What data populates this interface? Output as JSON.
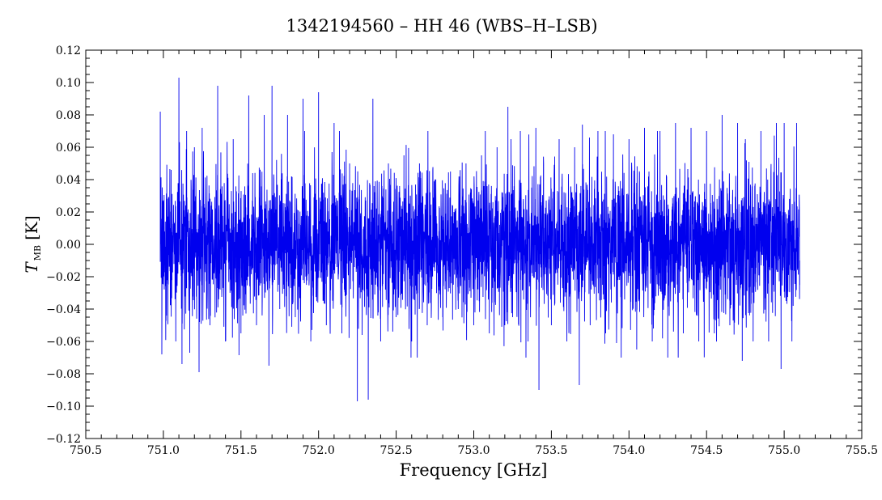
{
  "chart_data": {
    "type": "line",
    "title": "1342194560 – HH 46 (WBS–H–LSB)",
    "xlabel": "Frequency [GHz]",
    "ylabel": {
      "symbol": "T",
      "subscript": "MB",
      "unit": "[K]"
    },
    "xlim": [
      750.5,
      755.5
    ],
    "ylim": [
      -0.12,
      0.12
    ],
    "x_ticks": [
      750.5,
      751.0,
      751.5,
      752.0,
      752.5,
      753.0,
      753.5,
      754.0,
      754.5,
      755.0,
      755.5
    ],
    "x_tick_labels": [
      "750.5",
      "751.0",
      "751.5",
      "752.0",
      "752.5",
      "753.0",
      "753.5",
      "754.0",
      "754.5",
      "755.0",
      "755.5"
    ],
    "y_ticks": [
      -0.12,
      -0.1,
      -0.08,
      -0.06,
      -0.04,
      -0.02,
      0.0,
      0.02,
      0.04,
      0.06,
      0.08,
      0.1,
      0.12
    ],
    "y_tick_labels": [
      "−0.12",
      "−0.10",
      "−0.08",
      "−0.06",
      "−0.04",
      "−0.02",
      "0.00",
      "0.02",
      "0.04",
      "0.06",
      "0.08",
      "0.10",
      "0.12"
    ],
    "grid": false,
    "series": [
      {
        "color": "#0000ee",
        "x_range": [
          750.98,
          755.1
        ],
        "note_values": "noise spectrum, approx. zero mean, extremes shown below",
        "points": [
          [
            750.98,
            0.082
          ],
          [
            750.99,
            -0.068
          ],
          [
            751.0,
            0.02
          ],
          [
            751.02,
            -0.044
          ],
          [
            751.05,
            0.046
          ],
          [
            751.08,
            -0.06
          ],
          [
            751.1,
            0.103
          ],
          [
            751.12,
            -0.074
          ],
          [
            751.15,
            0.07
          ],
          [
            751.17,
            -0.067
          ],
          [
            751.2,
            0.06
          ],
          [
            751.23,
            -0.079
          ],
          [
            751.25,
            0.072
          ],
          [
            751.3,
            -0.05
          ],
          [
            751.35,
            0.098
          ],
          [
            751.4,
            -0.06
          ],
          [
            751.45,
            0.065
          ],
          [
            751.5,
            -0.055
          ],
          [
            751.55,
            0.092
          ],
          [
            751.6,
            -0.05
          ],
          [
            751.65,
            0.08
          ],
          [
            751.68,
            -0.075
          ],
          [
            751.7,
            0.098
          ],
          [
            751.75,
            -0.04
          ],
          [
            751.8,
            0.08
          ],
          [
            751.85,
            -0.045
          ],
          [
            751.9,
            0.09
          ],
          [
            751.95,
            -0.06
          ],
          [
            752.0,
            0.094
          ],
          [
            752.05,
            -0.05
          ],
          [
            752.1,
            0.075
          ],
          [
            752.15,
            -0.055
          ],
          [
            752.2,
            0.05
          ],
          [
            752.25,
            -0.097
          ],
          [
            752.3,
            0.025
          ],
          [
            752.32,
            -0.096
          ],
          [
            752.35,
            0.09
          ],
          [
            752.4,
            -0.06
          ],
          [
            752.45,
            0.05
          ],
          [
            752.5,
            -0.045
          ],
          [
            752.55,
            0.055
          ],
          [
            752.6,
            -0.06
          ],
          [
            752.65,
            0.05
          ],
          [
            752.7,
            -0.05
          ],
          [
            752.75,
            0.04
          ],
          [
            752.8,
            -0.045
          ],
          [
            752.85,
            0.045
          ],
          [
            752.9,
            -0.04
          ],
          [
            752.95,
            0.05
          ],
          [
            753.0,
            -0.05
          ],
          [
            753.05,
            0.055
          ],
          [
            753.1,
            -0.055
          ],
          [
            753.15,
            0.06
          ],
          [
            753.2,
            -0.05
          ],
          [
            753.22,
            0.085
          ],
          [
            753.25,
            -0.045
          ],
          [
            753.3,
            0.07
          ],
          [
            753.35,
            -0.06
          ],
          [
            753.4,
            0.072
          ],
          [
            753.42,
            -0.09
          ],
          [
            753.45,
            0.05
          ],
          [
            753.5,
            -0.05
          ],
          [
            753.55,
            0.065
          ],
          [
            753.6,
            -0.06
          ],
          [
            753.65,
            0.06
          ],
          [
            753.68,
            -0.087
          ],
          [
            753.7,
            0.074
          ],
          [
            753.75,
            -0.05
          ],
          [
            753.8,
            0.07
          ],
          [
            753.85,
            -0.055
          ],
          [
            753.9,
            0.068
          ],
          [
            753.95,
            -0.07
          ],
          [
            754.0,
            0.065
          ],
          [
            754.05,
            -0.065
          ],
          [
            754.1,
            0.072
          ],
          [
            754.15,
            -0.06
          ],
          [
            754.2,
            0.07
          ],
          [
            754.25,
            -0.07
          ],
          [
            754.3,
            0.075
          ],
          [
            754.35,
            -0.055
          ],
          [
            754.4,
            0.072
          ],
          [
            754.45,
            -0.06
          ],
          [
            754.5,
            0.07
          ],
          [
            754.55,
            -0.055
          ],
          [
            754.6,
            0.08
          ],
          [
            754.65,
            -0.05
          ],
          [
            754.7,
            0.075
          ],
          [
            754.73,
            -0.072
          ],
          [
            754.75,
            0.065
          ],
          [
            754.8,
            -0.06
          ],
          [
            754.85,
            0.07
          ],
          [
            754.9,
            -0.06
          ],
          [
            754.95,
            0.075
          ],
          [
            754.98,
            -0.077
          ],
          [
            755.0,
            0.075
          ],
          [
            755.05,
            -0.06
          ],
          [
            755.08,
            0.075
          ],
          [
            755.1,
            -0.01
          ]
        ]
      }
    ]
  }
}
